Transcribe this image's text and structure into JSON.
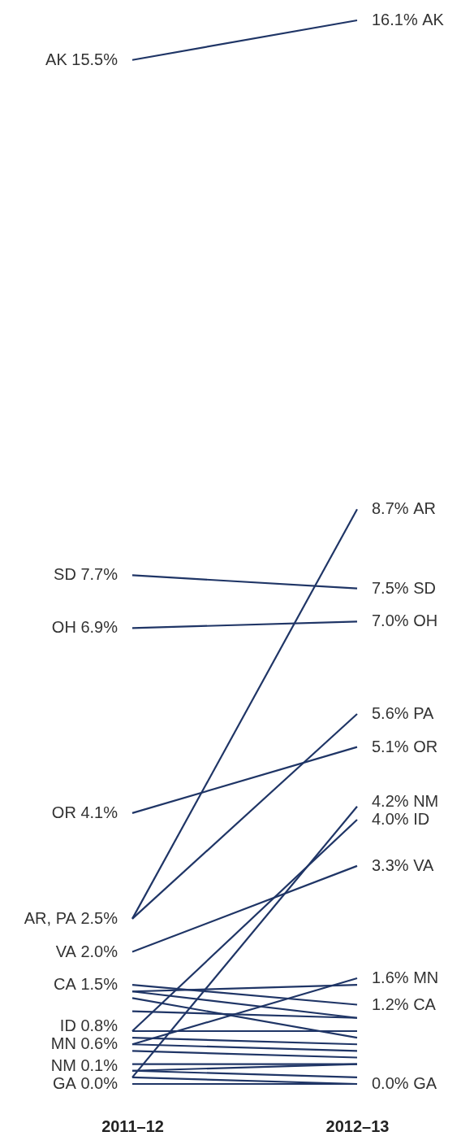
{
  "chart_data": {
    "type": "line",
    "categories": [
      "2011–12",
      "2012–13"
    ],
    "series": [
      {
        "name": "AK",
        "color": "#1f3566",
        "values": [
          15.5,
          16.1
        ],
        "value_labels": [
          "15.5%",
          "16.1%"
        ]
      },
      {
        "name": "SD",
        "color": "#1f3566",
        "values": [
          7.7,
          7.5
        ],
        "value_labels": [
          "7.7%",
          "7.5%"
        ]
      },
      {
        "name": "OH",
        "color": "#1f3566",
        "values": [
          6.9,
          7.0
        ],
        "value_labels": [
          "6.9%",
          "7.0%"
        ]
      },
      {
        "name": "AR",
        "color": "#1f3566",
        "values": [
          2.5,
          8.7
        ],
        "value_labels": [
          "2.5%",
          "8.7%"
        ]
      },
      {
        "name": "PA",
        "color": "#1f3566",
        "values": [
          2.5,
          5.6
        ],
        "value_labels": [
          null,
          "5.6%"
        ]
      },
      {
        "name": "OR",
        "color": "#1f3566",
        "values": [
          4.1,
          5.1
        ],
        "value_labels": [
          "4.1%",
          "5.1%"
        ]
      },
      {
        "name": "NM",
        "color": "#1f3566",
        "values": [
          0.1,
          4.2
        ],
        "value_labels": [
          "0.1%",
          "4.2%"
        ]
      },
      {
        "name": "ID",
        "color": "#1f3566",
        "values": [
          0.8,
          4.0
        ],
        "value_labels": [
          "0.8%",
          "4.0%"
        ]
      },
      {
        "name": "VA",
        "color": "#1f3566",
        "values": [
          2.0,
          3.3
        ],
        "value_labels": [
          "2.0%",
          "3.3%"
        ]
      },
      {
        "name": "MN",
        "color": "#1f3566",
        "values": [
          0.6,
          1.6
        ],
        "value_labels": [
          "0.6%",
          "1.6%"
        ]
      },
      {
        "name": "CA",
        "color": "#1f3566",
        "values": [
          1.5,
          1.2
        ],
        "value_labels": [
          "1.5%",
          "1.2%"
        ]
      },
      {
        "name": "GA",
        "color": "#1f3566",
        "values": [
          0.0,
          0.0
        ],
        "value_labels": [
          "0.0%",
          "0.0%"
        ]
      },
      {
        "color": "#1f3566",
        "values": [
          1.4,
          1.5
        ]
      },
      {
        "color": "#1f3566",
        "values": [
          1.4,
          1.0
        ]
      },
      {
        "color": "#1f3566",
        "values": [
          1.3,
          0.7
        ]
      },
      {
        "color": "#1f3566",
        "values": [
          1.1,
          1.0
        ]
      },
      {
        "color": "#1f3566",
        "values": [
          0.8,
          0.8
        ]
      },
      {
        "color": "#1f3566",
        "values": [
          0.7,
          0.6
        ]
      },
      {
        "color": "#1f3566",
        "values": [
          0.6,
          0.5
        ]
      },
      {
        "color": "#1f3566",
        "values": [
          0.5,
          0.4
        ]
      },
      {
        "color": "#1f3566",
        "values": [
          0.3,
          0.3
        ]
      },
      {
        "color": "#1f3566",
        "values": [
          0.2,
          0.3
        ]
      },
      {
        "color": "#1f3566",
        "values": [
          0.2,
          0.1
        ]
      },
      {
        "color": "#1f3566",
        "values": [
          0.1,
          0.0
        ]
      }
    ],
    "annotations": [
      ","
    ]
  }
}
